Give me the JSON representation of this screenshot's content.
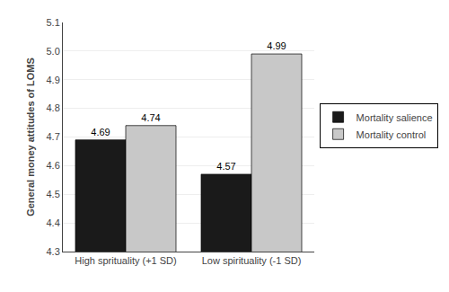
{
  "chart_data": {
    "type": "bar",
    "categories": [
      "High sprituality (+1 SD)",
      "Low spirituality (-1 SD)"
    ],
    "series": [
      {
        "name": "Mortality salience",
        "color": "#1a1a1a",
        "values": [
          4.69,
          4.57
        ]
      },
      {
        "name": "Mortality control",
        "color": "#c8c8c8",
        "values": [
          4.74,
          4.99
        ]
      }
    ],
    "ylabel": "General money attitudes of LOMS",
    "ylim": [
      4.3,
      5.1
    ],
    "yticks": [
      4.3,
      4.4,
      4.5,
      4.6,
      4.7,
      4.8,
      4.9,
      {
        "value": 5.0,
        "label": "5.0"
      },
      5.1
    ],
    "grid": true,
    "legend": "right",
    "data_labels": true
  }
}
